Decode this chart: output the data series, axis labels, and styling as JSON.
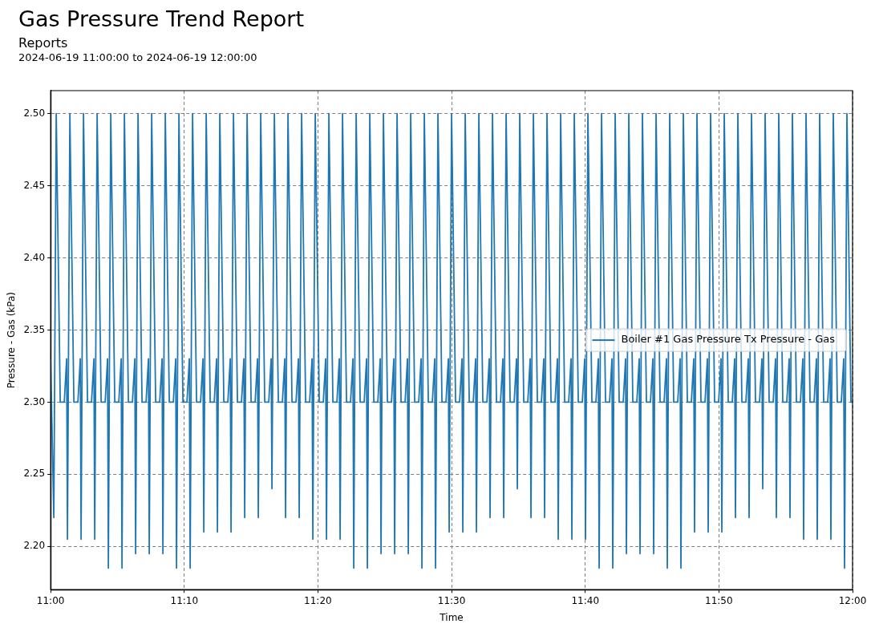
{
  "chart_data": {
    "type": "line",
    "title": "Gas Pressure Trend Report",
    "subtitle": "Reports",
    "annotations": [
      "2024-06-19 11:00:00 to 2024-06-19 12:00:00"
    ],
    "xlabel": "Time",
    "ylabel": "Pressure - Gas (kPa)",
    "xlim": [
      11,
      12
    ],
    "xticks": [
      {
        "value": 11,
        "label": "11:00"
      },
      {
        "value": 11.1667,
        "label": "11:10"
      },
      {
        "value": 11.3333,
        "label": "11:20"
      },
      {
        "value": 11.5,
        "label": "11:30"
      },
      {
        "value": 11.6667,
        "label": "11:40"
      },
      {
        "value": 11.8333,
        "label": "11:50"
      },
      {
        "value": 12,
        "label": "12:00"
      }
    ],
    "ylim": [
      2.17,
      2.516
    ],
    "yticks": [
      {
        "value": 2.2,
        "label": "2.20"
      },
      {
        "value": 2.25,
        "label": "2.25"
      },
      {
        "value": 2.3,
        "label": "2.30"
      },
      {
        "value": 2.35,
        "label": "2.35"
      },
      {
        "value": 2.4,
        "label": "2.40"
      },
      {
        "value": 2.45,
        "label": "2.45"
      },
      {
        "value": 2.5,
        "label": "2.50"
      }
    ],
    "grid": true,
    "legend": "right",
    "marker": "none",
    "line_style": "solid",
    "series": [
      {
        "name": "Boiler #1 Gas Pressure Tx Pressure - Gas",
        "color": "#1f77b4",
        "x": [
          11,
          11.004,
          11.007,
          11.012,
          11.017,
          11.02,
          11.021,
          11.024,
          11.029,
          11.034,
          11.037,
          11.038,
          11.041,
          11.046,
          11.051,
          11.054,
          11.055,
          11.058,
          11.063,
          11.068,
          11.071,
          11.072,
          11.075,
          11.08,
          11.085,
          11.088,
          11.089,
          11.092,
          11.097,
          11.102,
          11.105,
          11.106,
          11.109,
          11.114,
          11.119,
          11.122,
          11.123,
          11.126,
          11.131,
          11.136,
          11.139,
          11.14,
          11.143,
          11.148,
          11.153,
          11.156,
          11.157,
          11.16,
          11.165,
          11.17,
          11.173,
          11.174,
          11.177,
          11.182,
          11.187,
          11.19,
          11.191,
          11.194,
          11.199,
          11.204,
          11.207,
          11.208,
          11.211,
          11.216,
          11.221,
          11.224,
          11.225,
          11.228,
          11.233,
          11.238,
          11.241,
          11.242,
          11.245,
          11.25,
          11.255,
          11.258,
          11.259,
          11.262,
          11.267,
          11.272,
          11.275,
          11.276,
          11.279,
          11.284,
          11.289,
          11.292,
          11.293,
          11.296,
          11.301,
          11.306,
          11.309,
          11.31,
          11.313,
          11.318,
          11.323,
          11.326,
          11.327,
          11.33,
          11.335,
          11.34,
          11.343,
          11.344,
          11.347,
          11.352,
          11.357,
          11.36,
          11.361,
          11.364,
          11.369,
          11.374,
          11.377,
          11.378,
          11.381,
          11.386,
          11.391,
          11.394,
          11.395,
          11.398,
          11.403,
          11.408,
          11.411,
          11.412,
          11.415,
          11.42,
          11.425,
          11.428,
          11.429,
          11.432,
          11.437,
          11.442,
          11.445,
          11.446,
          11.449,
          11.454,
          11.459,
          11.462,
          11.463,
          11.466,
          11.471,
          11.476,
          11.479,
          11.48,
          11.483,
          11.488,
          11.493,
          11.496,
          11.497,
          11.5,
          11.505,
          11.51,
          11.513,
          11.514,
          11.517,
          11.522,
          11.527,
          11.53,
          11.531,
          11.534,
          11.539,
          11.544,
          11.547,
          11.548,
          11.551,
          11.556,
          11.561,
          11.564,
          11.565,
          11.568,
          11.573,
          11.578,
          11.581,
          11.582,
          11.585,
          11.59,
          11.595,
          11.598,
          11.599,
          11.602,
          11.607,
          11.612,
          11.615,
          11.616,
          11.619,
          11.624,
          11.629,
          11.632,
          11.633,
          11.636,
          11.641,
          11.646,
          11.649,
          11.65,
          11.653,
          11.658,
          11.663,
          11.666,
          11.667,
          11.67,
          11.675,
          11.68,
          11.683,
          11.684,
          11.687,
          11.692,
          11.697,
          11.7,
          11.701,
          11.704,
          11.709,
          11.714,
          11.717,
          11.718,
          11.721,
          11.726,
          11.731,
          11.734,
          11.735,
          11.738,
          11.743,
          11.748,
          11.751,
          11.752,
          11.755,
          11.76,
          11.765,
          11.768,
          11.769,
          11.772,
          11.777,
          11.782,
          11.785,
          11.786,
          11.789,
          11.794,
          11.799,
          11.802,
          11.803,
          11.806,
          11.811,
          11.816,
          11.819,
          11.82,
          11.823,
          11.828,
          11.833,
          11.836,
          11.837,
          11.84,
          11.845,
          11.85,
          11.853,
          11.854,
          11.857,
          11.862,
          11.867,
          11.87,
          11.871,
          11.874,
          11.879,
          11.884,
          11.887,
          11.888,
          11.891,
          11.896,
          11.901,
          11.904,
          11.905,
          11.908,
          11.913,
          11.918,
          11.921,
          11.922,
          11.925,
          11.93,
          11.935,
          11.938,
          11.939,
          11.942,
          11.947,
          11.952,
          11.955,
          11.956,
          11.959,
          11.964,
          11.969,
          11.972,
          11.973,
          11.976,
          11.981,
          11.986,
          11.989,
          11.99,
          11.993,
          11.998,
          12
        ],
        "values": [
          2.33,
          2.22,
          2.5,
          2.3,
          2.3,
          2.33,
          2.205,
          2.5,
          2.3,
          2.3,
          2.33,
          2.205,
          2.5,
          2.3,
          2.3,
          2.33,
          2.205,
          2.5,
          2.3,
          2.3,
          2.33,
          2.185,
          2.5,
          2.3,
          2.3,
          2.33,
          2.185,
          2.5,
          2.3,
          2.3,
          2.33,
          2.195,
          2.5,
          2.3,
          2.3,
          2.33,
          2.195,
          2.5,
          2.3,
          2.3,
          2.33,
          2.195,
          2.5,
          2.3,
          2.3,
          2.33,
          2.185,
          2.5,
          2.3,
          2.3,
          2.33,
          2.185,
          2.5,
          2.3,
          2.3,
          2.33,
          2.21,
          2.5,
          2.3,
          2.3,
          2.33,
          2.21,
          2.5,
          2.3,
          2.3,
          2.33,
          2.21,
          2.5,
          2.3,
          2.3,
          2.33,
          2.22,
          2.5,
          2.3,
          2.3,
          2.33,
          2.22,
          2.5,
          2.3,
          2.3,
          2.33,
          2.24,
          2.5,
          2.3,
          2.3,
          2.33,
          2.22,
          2.5,
          2.3,
          2.3,
          2.33,
          2.22,
          2.5,
          2.3,
          2.3,
          2.33,
          2.205,
          2.5,
          2.3,
          2.3,
          2.33,
          2.205,
          2.5,
          2.3,
          2.3,
          2.33,
          2.205,
          2.5,
          2.3,
          2.3,
          2.33,
          2.185,
          2.5,
          2.3,
          2.3,
          2.33,
          2.185,
          2.5,
          2.3,
          2.3,
          2.33,
          2.195,
          2.5,
          2.3,
          2.3,
          2.33,
          2.195,
          2.5,
          2.3,
          2.3,
          2.33,
          2.195,
          2.5,
          2.3,
          2.3,
          2.33,
          2.185,
          2.5,
          2.3,
          2.3,
          2.33,
          2.185,
          2.5,
          2.3,
          2.3,
          2.33,
          2.21,
          2.5,
          2.3,
          2.3,
          2.33,
          2.21,
          2.5,
          2.3,
          2.3,
          2.33,
          2.21,
          2.5,
          2.3,
          2.3,
          2.33,
          2.22,
          2.5,
          2.3,
          2.3,
          2.33,
          2.22,
          2.5,
          2.3,
          2.3,
          2.33,
          2.24,
          2.5,
          2.3,
          2.3,
          2.33,
          2.22,
          2.5,
          2.3,
          2.3,
          2.33,
          2.22,
          2.5,
          2.3,
          2.3,
          2.33,
          2.205,
          2.5,
          2.3,
          2.3,
          2.33,
          2.205,
          2.5,
          2.3,
          2.3,
          2.33,
          2.205,
          2.5,
          2.3,
          2.3,
          2.33,
          2.185,
          2.5,
          2.3,
          2.3,
          2.33,
          2.185,
          2.5,
          2.3,
          2.3,
          2.33,
          2.195,
          2.5,
          2.3,
          2.3,
          2.33,
          2.195,
          2.5,
          2.3,
          2.3,
          2.33,
          2.195,
          2.5,
          2.3,
          2.3,
          2.33,
          2.185,
          2.5,
          2.3,
          2.3,
          2.33,
          2.185,
          2.5,
          2.3,
          2.3,
          2.33,
          2.21,
          2.5,
          2.3,
          2.3,
          2.33,
          2.21,
          2.5,
          2.3,
          2.3,
          2.33,
          2.21,
          2.5,
          2.3,
          2.3,
          2.33,
          2.22,
          2.5,
          2.3,
          2.3,
          2.33,
          2.22,
          2.5,
          2.3,
          2.3,
          2.33,
          2.24,
          2.5,
          2.3,
          2.3,
          2.33,
          2.22,
          2.5,
          2.3,
          2.3,
          2.33,
          2.22,
          2.5,
          2.3,
          2.3,
          2.33,
          2.205,
          2.5,
          2.3,
          2.3,
          2.33,
          2.205,
          2.5,
          2.3,
          2.3,
          2.33,
          2.205,
          2.5,
          2.3,
          2.3,
          2.33,
          2.185,
          2.5,
          2.3,
          2.3
        ]
      }
    ]
  }
}
